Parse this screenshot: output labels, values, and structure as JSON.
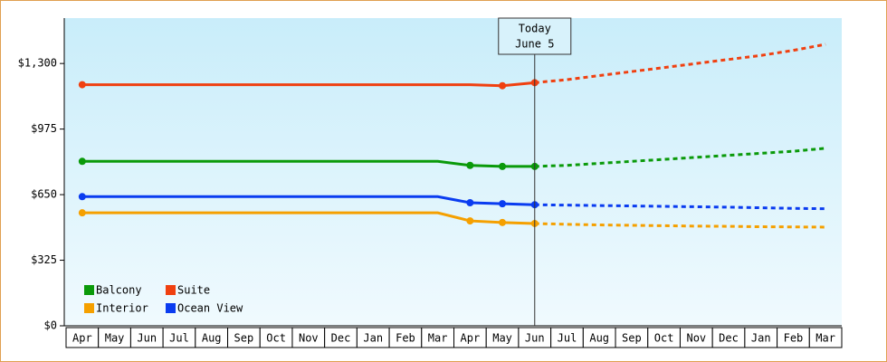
{
  "chart_data": {
    "type": "line",
    "categories": [
      "Apr",
      "May",
      "Jun",
      "Jul",
      "Aug",
      "Sep",
      "Oct",
      "Nov",
      "Dec",
      "Jan",
      "Feb",
      "Mar",
      "Apr",
      "May",
      "Jun",
      "Jul",
      "Aug",
      "Sep",
      "Oct",
      "Nov",
      "Dec",
      "Jan",
      "Feb",
      "Mar"
    ],
    "series": [
      {
        "name": "Balcony",
        "color": "#0a9a0a",
        "values": [
          815,
          815,
          815,
          815,
          815,
          815,
          815,
          815,
          815,
          815,
          815,
          815,
          795,
          790,
          790,
          null,
          null,
          null,
          null,
          null,
          null,
          null,
          null,
          null
        ],
        "forecast": [
          null,
          null,
          null,
          null,
          null,
          null,
          null,
          null,
          null,
          null,
          null,
          null,
          null,
          null,
          790,
          795,
          805,
          815,
          825,
          835,
          845,
          855,
          865,
          880
        ]
      },
      {
        "name": "Suite",
        "color": "#f04010",
        "values": [
          1195,
          1195,
          1195,
          1195,
          1195,
          1195,
          1195,
          1195,
          1195,
          1195,
          1195,
          1195,
          1195,
          1190,
          1205,
          null,
          null,
          null,
          null,
          null,
          null,
          null,
          null,
          null
        ],
        "forecast": [
          null,
          null,
          null,
          null,
          null,
          null,
          null,
          null,
          null,
          null,
          null,
          null,
          null,
          null,
          1205,
          1220,
          1240,
          1260,
          1280,
          1300,
          1320,
          1340,
          1365,
          1395
        ]
      },
      {
        "name": "Interior",
        "color": "#f5a000",
        "values": [
          560,
          560,
          560,
          560,
          560,
          560,
          560,
          560,
          560,
          560,
          560,
          560,
          520,
          512,
          507,
          null,
          null,
          null,
          null,
          null,
          null,
          null,
          null,
          null
        ],
        "forecast": [
          null,
          null,
          null,
          null,
          null,
          null,
          null,
          null,
          null,
          null,
          null,
          null,
          null,
          null,
          507,
          503,
          500,
          498,
          496,
          494,
          493,
          491,
          490,
          489
        ]
      },
      {
        "name": "Ocean View",
        "color": "#0a3cf0",
        "values": [
          640,
          640,
          640,
          640,
          640,
          640,
          640,
          640,
          640,
          640,
          640,
          640,
          610,
          605,
          600,
          null,
          null,
          null,
          null,
          null,
          null,
          null,
          null,
          null
        ],
        "forecast": [
          null,
          null,
          null,
          null,
          null,
          null,
          null,
          null,
          null,
          null,
          null,
          null,
          null,
          null,
          600,
          598,
          596,
          594,
          592,
          590,
          588,
          585,
          582,
          580
        ]
      }
    ],
    "ylim": [
      0,
      1525
    ],
    "yticks": [
      {
        "value": 0,
        "label": "$0"
      },
      {
        "value": 325,
        "label": "$325"
      },
      {
        "value": 650,
        "label": "$650"
      },
      {
        "value": 975,
        "label": "$975"
      },
      {
        "value": 1300,
        "label": "$1,300"
      }
    ],
    "annotation": {
      "category": 14,
      "lines": [
        "Today",
        "June 5"
      ]
    },
    "legend": "lower-left"
  }
}
